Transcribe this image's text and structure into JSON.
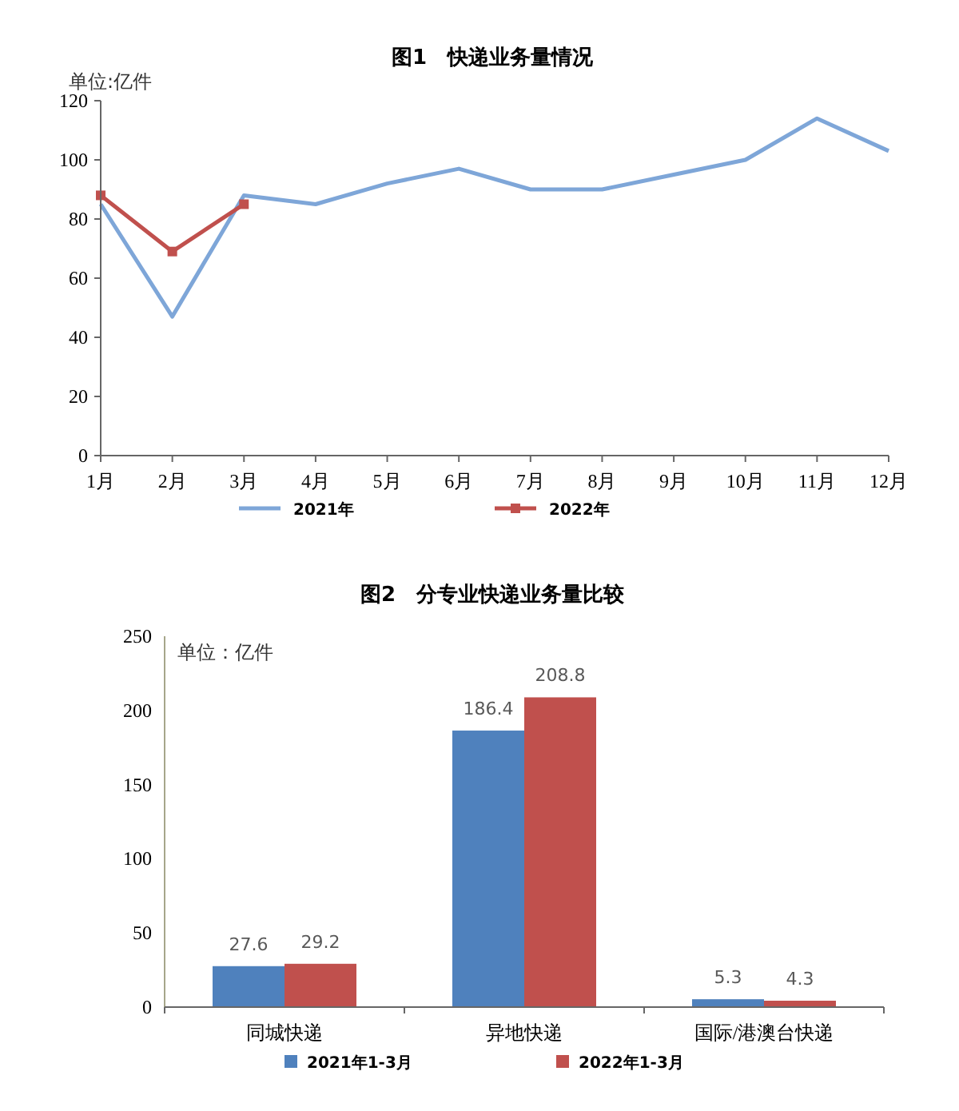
{
  "chart_data": [
    {
      "type": "line",
      "title": "图1　快递业务量情况",
      "annotations": [
        "单位:亿件"
      ],
      "categories": [
        "1月",
        "2月",
        "3月",
        "4月",
        "5月",
        "6月",
        "7月",
        "8月",
        "9月",
        "10月",
        "11月",
        "12月"
      ],
      "series": [
        {
          "name": "2021年",
          "color": "#7ea6d8",
          "values": [
            85,
            47,
            88,
            85,
            92,
            97,
            90,
            90,
            95,
            100,
            114,
            103
          ]
        },
        {
          "name": "2022年",
          "color": "#c0504d",
          "marker": "square",
          "values": [
            88,
            69,
            85,
            null,
            null,
            null,
            null,
            null,
            null,
            null,
            null,
            null
          ]
        }
      ],
      "ylim": [
        0,
        120
      ],
      "yticks": [
        0,
        20,
        40,
        60,
        80,
        100,
        120
      ],
      "grid": false,
      "legend": "bottom"
    },
    {
      "type": "bar",
      "title": "图2　分专业快递业务量比较",
      "annotations": [
        "单位：亿件"
      ],
      "categories": [
        "同城快递",
        "异地快递",
        "国际/港澳台快递"
      ],
      "series": [
        {
          "name": "2021年1-3月",
          "color": "#4f81bd",
          "values": [
            27.6,
            186.4,
            5.3
          ]
        },
        {
          "name": "2022年1-3月",
          "color": "#c0504d",
          "values": [
            29.2,
            208.8,
            4.3
          ]
        }
      ],
      "ylim": [
        0,
        250
      ],
      "yticks": [
        0,
        50,
        100,
        150,
        200,
        250
      ],
      "grid": false,
      "legend": "bottom",
      "data_labels": true
    }
  ]
}
